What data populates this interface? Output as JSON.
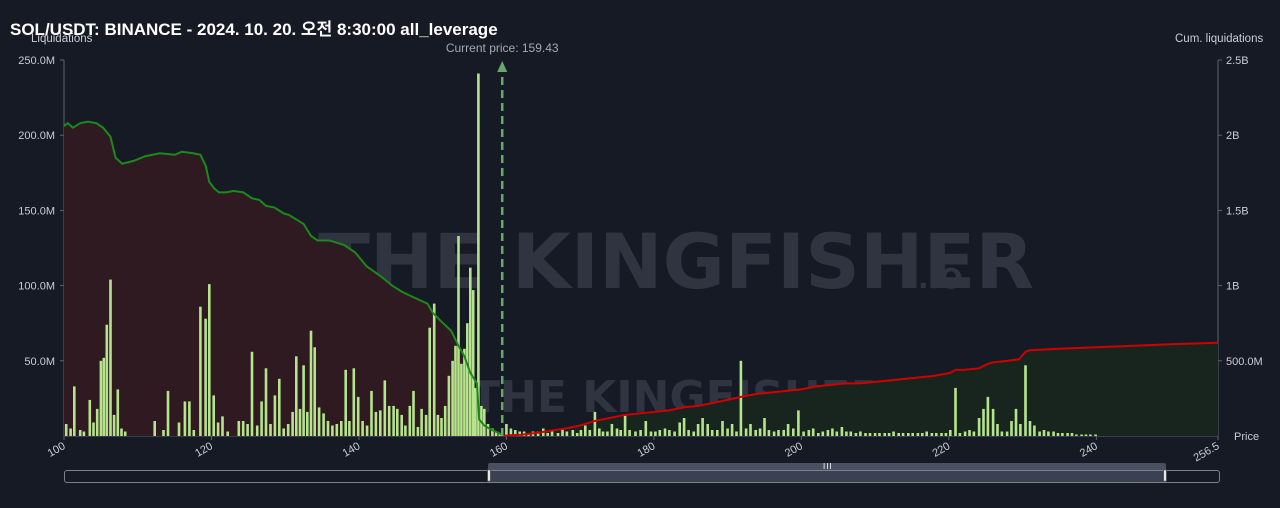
{
  "title": "SOL/USDT: BINANCE - 2024. 10. 20. 오전 8:30:00 all_leverage",
  "left_axis_title": "Liquidations",
  "right_axis_title": "Cum. liquidations",
  "current_price_label": "Current price: 159.43",
  "watermark_big": "THE KINGFISHER",
  "watermark_small": "THE KINGFISHER",
  "watermark_io": ".IO",
  "colors": {
    "background": "#161a25",
    "bars": "#b5e48c",
    "short_line": "#1a8a1a",
    "long_line": "#d10000",
    "short_fill": "#2e1a20",
    "long_fill": "#17251e",
    "current_price": "#6aa86a"
  },
  "scrollbar": {
    "grip": "III"
  },
  "chart_data": {
    "type": "bar",
    "xlabel": "Price",
    "ylabel": "Liquidations",
    "y2label": "Cum. liquidations",
    "xlim": [
      100,
      256.5
    ],
    "ylim": [
      0,
      250
    ],
    "y2lim": [
      0,
      2500
    ],
    "x_ticks": [
      "100",
      "120",
      "140",
      "160",
      "180",
      "200",
      "220",
      "240",
      "256.5"
    ],
    "y_ticks": [
      "250.0M",
      "200.0M",
      "150.0M",
      "100.0M",
      "50.0M"
    ],
    "y2_ticks": [
      "2.5B",
      "2B",
      "1.5B",
      "1B",
      "500.0M"
    ],
    "current_price": 159.43,
    "bars": [
      [
        100.3,
        8
      ],
      [
        100.9,
        5
      ],
      [
        101.4,
        33
      ],
      [
        102.2,
        4
      ],
      [
        102.7,
        3
      ],
      [
        103.5,
        24
      ],
      [
        104.0,
        9
      ],
      [
        104.5,
        18
      ],
      [
        105.0,
        50
      ],
      [
        105.4,
        52
      ],
      [
        105.8,
        74
      ],
      [
        106.3,
        104
      ],
      [
        106.8,
        14
      ],
      [
        107.3,
        31
      ],
      [
        107.8,
        5
      ],
      [
        108.3,
        3
      ],
      [
        112.3,
        10
      ],
      [
        113.5,
        4
      ],
      [
        114.1,
        30
      ],
      [
        115.6,
        9
      ],
      [
        116.4,
        23
      ],
      [
        117.0,
        23
      ],
      [
        117.6,
        4
      ],
      [
        118.5,
        86
      ],
      [
        119.2,
        78
      ],
      [
        119.7,
        101
      ],
      [
        120.3,
        27
      ],
      [
        120.9,
        9
      ],
      [
        121.5,
        13
      ],
      [
        122.2,
        3
      ],
      [
        123.7,
        10
      ],
      [
        124.3,
        10
      ],
      [
        124.9,
        8
      ],
      [
        125.5,
        56
      ],
      [
        126.2,
        7
      ],
      [
        126.8,
        23
      ],
      [
        127.4,
        45
      ],
      [
        128.0,
        8
      ],
      [
        128.6,
        27
      ],
      [
        129.2,
        38
      ],
      [
        129.8,
        5
      ],
      [
        130.4,
        8
      ],
      [
        131.0,
        16
      ],
      [
        131.5,
        53
      ],
      [
        132.0,
        18
      ],
      [
        132.5,
        47
      ],
      [
        133.0,
        16
      ],
      [
        133.5,
        70
      ],
      [
        134.0,
        59
      ],
      [
        134.6,
        19
      ],
      [
        135.2,
        15
      ],
      [
        135.8,
        10
      ],
      [
        136.4,
        7
      ],
      [
        137.0,
        8
      ],
      [
        137.6,
        10
      ],
      [
        138.2,
        44
      ],
      [
        138.7,
        10
      ],
      [
        139.3,
        45
      ],
      [
        139.9,
        26
      ],
      [
        140.5,
        10
      ],
      [
        141.1,
        7
      ],
      [
        141.7,
        30
      ],
      [
        142.3,
        16
      ],
      [
        142.9,
        17
      ],
      [
        143.5,
        37
      ],
      [
        144.1,
        20
      ],
      [
        144.7,
        20
      ],
      [
        145.2,
        18
      ],
      [
        145.8,
        14
      ],
      [
        146.3,
        7
      ],
      [
        146.9,
        20
      ],
      [
        147.4,
        30
      ],
      [
        148.0,
        6
      ],
      [
        148.5,
        18
      ],
      [
        149.1,
        14
      ],
      [
        149.6,
        72
      ],
      [
        150.2,
        88
      ],
      [
        150.7,
        14
      ],
      [
        151.2,
        12
      ],
      [
        151.7,
        20
      ],
      [
        152.2,
        40
      ],
      [
        152.7,
        50
      ],
      [
        153.1,
        60
      ],
      [
        153.5,
        133
      ],
      [
        153.9,
        48
      ],
      [
        154.3,
        58
      ],
      [
        154.7,
        75
      ],
      [
        155.1,
        112
      ],
      [
        155.5,
        97
      ],
      [
        155.8,
        32
      ],
      [
        156.2,
        241
      ],
      [
        156.6,
        20
      ],
      [
        157.0,
        18
      ],
      [
        157.5,
        8
      ],
      [
        158.1,
        5
      ],
      [
        158.6,
        3
      ],
      [
        159.1,
        2
      ],
      [
        160.0,
        8
      ],
      [
        160.6,
        5
      ],
      [
        161.2,
        4
      ],
      [
        161.8,
        3
      ],
      [
        162.4,
        3
      ],
      [
        163.0,
        2
      ],
      [
        163.6,
        3
      ],
      [
        164.3,
        3
      ],
      [
        165.0,
        5
      ],
      [
        165.6,
        2
      ],
      [
        166.2,
        4
      ],
      [
        167.0,
        2
      ],
      [
        167.6,
        5
      ],
      [
        168.2,
        3
      ],
      [
        169.0,
        4
      ],
      [
        169.6,
        2
      ],
      [
        170.1,
        4
      ],
      [
        170.7,
        7
      ],
      [
        171.3,
        4
      ],
      [
        172.0,
        16
      ],
      [
        172.6,
        5
      ],
      [
        173.1,
        3
      ],
      [
        173.7,
        3
      ],
      [
        174.3,
        8
      ],
      [
        175.0,
        5
      ],
      [
        175.5,
        4
      ],
      [
        176.1,
        14
      ],
      [
        176.7,
        4
      ],
      [
        177.5,
        3
      ],
      [
        178.2,
        4
      ],
      [
        178.9,
        10
      ],
      [
        179.6,
        3
      ],
      [
        180.2,
        3
      ],
      [
        180.8,
        4
      ],
      [
        181.5,
        5
      ],
      [
        182.1,
        4
      ],
      [
        182.8,
        3
      ],
      [
        183.5,
        9
      ],
      [
        184.1,
        12
      ],
      [
        184.7,
        4
      ],
      [
        185.4,
        3
      ],
      [
        186.0,
        8
      ],
      [
        186.6,
        12
      ],
      [
        187.3,
        8
      ],
      [
        187.9,
        4
      ],
      [
        188.6,
        4
      ],
      [
        189.3,
        10
      ],
      [
        190.0,
        5
      ],
      [
        190.6,
        8
      ],
      [
        191.2,
        3
      ],
      [
        191.8,
        50
      ],
      [
        192.5,
        5
      ],
      [
        193.1,
        8
      ],
      [
        193.8,
        4
      ],
      [
        194.4,
        5
      ],
      [
        195.0,
        12
      ],
      [
        195.6,
        4
      ],
      [
        196.3,
        3
      ],
      [
        196.9,
        4
      ],
      [
        197.6,
        4
      ],
      [
        198.2,
        8
      ],
      [
        198.9,
        5
      ],
      [
        199.6,
        17
      ],
      [
        200.3,
        3
      ],
      [
        201.0,
        4
      ],
      [
        201.6,
        5
      ],
      [
        202.3,
        2
      ],
      [
        202.9,
        3
      ],
      [
        203.6,
        4
      ],
      [
        204.2,
        5
      ],
      [
        204.8,
        3
      ],
      [
        205.5,
        6
      ],
      [
        206.1,
        3
      ],
      [
        206.7,
        3
      ],
      [
        207.4,
        2
      ],
      [
        208.0,
        3
      ],
      [
        208.7,
        2
      ],
      [
        209.3,
        2
      ],
      [
        210.0,
        2
      ],
      [
        210.6,
        2
      ],
      [
        211.3,
        2
      ],
      [
        211.9,
        2
      ],
      [
        212.5,
        3
      ],
      [
        213.2,
        2
      ],
      [
        213.8,
        2
      ],
      [
        214.5,
        2
      ],
      [
        215.1,
        2
      ],
      [
        215.8,
        2
      ],
      [
        216.4,
        2
      ],
      [
        217.0,
        3
      ],
      [
        217.7,
        2
      ],
      [
        218.3,
        2
      ],
      [
        219.0,
        2
      ],
      [
        219.6,
        2
      ],
      [
        220.2,
        4
      ],
      [
        220.9,
        32
      ],
      [
        221.5,
        2
      ],
      [
        222.2,
        3
      ],
      [
        222.8,
        4
      ],
      [
        223.4,
        3
      ],
      [
        224.1,
        12
      ],
      [
        224.7,
        18
      ],
      [
        225.3,
        26
      ],
      [
        226.0,
        18
      ],
      [
        226.6,
        8
      ],
      [
        227.2,
        3
      ],
      [
        227.9,
        3
      ],
      [
        228.5,
        10
      ],
      [
        229.1,
        18
      ],
      [
        229.7,
        8
      ],
      [
        230.4,
        47
      ],
      [
        231.0,
        10
      ],
      [
        231.6,
        7
      ],
      [
        232.3,
        3
      ],
      [
        232.9,
        4
      ],
      [
        233.5,
        3
      ],
      [
        234.2,
        3
      ],
      [
        234.8,
        2
      ],
      [
        235.4,
        2
      ],
      [
        236.1,
        2
      ],
      [
        236.7,
        2
      ],
      [
        237.3,
        1
      ],
      [
        238.0,
        1
      ],
      [
        238.6,
        1
      ],
      [
        239.2,
        1
      ],
      [
        239.9,
        1
      ]
    ],
    "short_cum": [
      [
        100,
        2060
      ],
      [
        100.5,
        2080
      ],
      [
        101.2,
        2050
      ],
      [
        102.2,
        2080
      ],
      [
        103.2,
        2090
      ],
      [
        104.4,
        2080
      ],
      [
        105.3,
        2050
      ],
      [
        106.3,
        1990
      ],
      [
        107.0,
        1850
      ],
      [
        107.9,
        1810
      ],
      [
        109.5,
        1830
      ],
      [
        111.0,
        1860
      ],
      [
        113.0,
        1880
      ],
      [
        115.0,
        1870
      ],
      [
        116.0,
        1890
      ],
      [
        117.5,
        1880
      ],
      [
        118.5,
        1870
      ],
      [
        119.2,
        1800
      ],
      [
        119.7,
        1690
      ],
      [
        120.3,
        1650
      ],
      [
        121.0,
        1620
      ],
      [
        122.0,
        1620
      ],
      [
        123.0,
        1630
      ],
      [
        124.3,
        1620
      ],
      [
        125.5,
        1580
      ],
      [
        126.5,
        1570
      ],
      [
        127.4,
        1530
      ],
      [
        128.5,
        1520
      ],
      [
        129.8,
        1480
      ],
      [
        130.5,
        1470
      ],
      [
        131.5,
        1440
      ],
      [
        132.5,
        1410
      ],
      [
        133.5,
        1330
      ],
      [
        134.4,
        1300
      ],
      [
        136.0,
        1300
      ],
      [
        138.0,
        1270
      ],
      [
        139.5,
        1220
      ],
      [
        141.0,
        1130
      ],
      [
        143.0,
        1060
      ],
      [
        144.5,
        1000
      ],
      [
        145.8,
        960
      ],
      [
        147.5,
        920
      ],
      [
        149.3,
        880
      ],
      [
        150.0,
        820
      ],
      [
        151.2,
        760
      ],
      [
        152.5,
        700
      ],
      [
        153.5,
        600
      ],
      [
        154.3,
        530
      ],
      [
        155.1,
        420
      ],
      [
        156.0,
        350
      ],
      [
        156.3,
        110
      ],
      [
        157.0,
        70
      ],
      [
        158.0,
        40
      ],
      [
        159.0,
        20
      ],
      [
        159.43,
        5
      ]
    ],
    "long_cum": [
      [
        159.43,
        0
      ],
      [
        160.5,
        5
      ],
      [
        162.0,
        8
      ],
      [
        164.0,
        20
      ],
      [
        166.0,
        35
      ],
      [
        168.0,
        50
      ],
      [
        170.0,
        70
      ],
      [
        172.0,
        100
      ],
      [
        174.0,
        120
      ],
      [
        176.0,
        140
      ],
      [
        178.0,
        150
      ],
      [
        180.0,
        160
      ],
      [
        182.0,
        170
      ],
      [
        184.0,
        190
      ],
      [
        186.0,
        200
      ],
      [
        188.0,
        220
      ],
      [
        190.0,
        240
      ],
      [
        191.8,
        260
      ],
      [
        194.0,
        280
      ],
      [
        196.0,
        290
      ],
      [
        198.0,
        300
      ],
      [
        200.0,
        310
      ],
      [
        202.0,
        330
      ],
      [
        204.0,
        340
      ],
      [
        206.0,
        350
      ],
      [
        208.0,
        350
      ],
      [
        210.0,
        360
      ],
      [
        212.0,
        370
      ],
      [
        214.0,
        380
      ],
      [
        216.0,
        390
      ],
      [
        218.0,
        400
      ],
      [
        220.2,
        420
      ],
      [
        220.9,
        440
      ],
      [
        222.0,
        440
      ],
      [
        224.1,
        450
      ],
      [
        225.3,
        480
      ],
      [
        226.0,
        490
      ],
      [
        228.0,
        500
      ],
      [
        229.5,
        510
      ],
      [
        230.4,
        560
      ],
      [
        231.0,
        570
      ],
      [
        235.0,
        580
      ],
      [
        240.0,
        590
      ],
      [
        245.0,
        600
      ],
      [
        250.0,
        610
      ],
      [
        256.5,
        620
      ]
    ]
  }
}
